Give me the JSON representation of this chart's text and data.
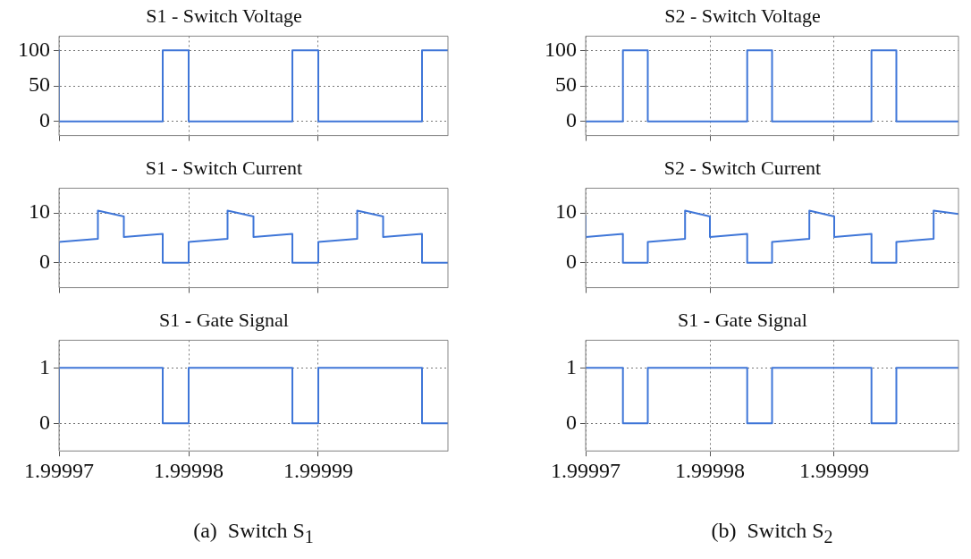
{
  "chart_data": [
    {
      "type": "line",
      "title": "S1 - Switch Voltage",
      "xlim": [
        1.99997,
        2.0
      ],
      "xticks": [
        1.99997,
        1.99998,
        1.99999
      ],
      "ylim": [
        -20,
        120
      ],
      "yticks": [
        0,
        50,
        100
      ],
      "grid": true,
      "marker": "none",
      "tick_labels": "y",
      "series": [
        {
          "color": "#3f76d8",
          "x": [
            1.99997,
            1.99997,
            1.999978,
            1.999978,
            1.99998,
            1.99998,
            1.999988,
            1.999988,
            1.99999,
            1.99999,
            1.999998,
            1.999998,
            2.0
          ],
          "values": [
            100,
            0,
            0,
            100,
            100,
            0,
            0,
            100,
            100,
            0,
            0,
            100,
            100
          ]
        }
      ]
    },
    {
      "type": "line",
      "title": "S2 - Switch Voltage",
      "xlim": [
        1.99997,
        2.0
      ],
      "xticks": [
        1.99997,
        1.99998,
        1.99999
      ],
      "ylim": [
        -20,
        120
      ],
      "yticks": [
        0,
        50,
        100
      ],
      "grid": true,
      "marker": "none",
      "tick_labels": "y",
      "series": [
        {
          "color": "#3f76d8",
          "x": [
            1.99997,
            1.999973,
            1.999973,
            1.999975,
            1.999975,
            1.999983,
            1.999983,
            1.999985,
            1.999985,
            1.999993,
            1.999993,
            1.999995,
            1.999995,
            2.0
          ],
          "values": [
            0,
            0,
            100,
            100,
            0,
            0,
            100,
            100,
            0,
            0,
            100,
            100,
            0,
            0
          ]
        }
      ]
    },
    {
      "type": "line",
      "title": "S1 - Switch Current",
      "xlim": [
        1.99997,
        2.0
      ],
      "xticks": [
        1.99997,
        1.99998,
        1.99999
      ],
      "ylim": [
        -5,
        15
      ],
      "yticks": [
        0,
        10
      ],
      "grid": true,
      "marker": "none",
      "tick_labels": "y",
      "series": [
        {
          "color": "#3f76d8",
          "x": [
            1.99997,
            1.99997,
            1.999973,
            1.999973,
            1.999975,
            1.999975,
            1.999978,
            1.999978,
            1.99998,
            1.99998,
            1.999983,
            1.999983,
            1.999985,
            1.999985,
            1.999988,
            1.999988,
            1.99999,
            1.99999,
            1.999993,
            1.999993,
            1.999995,
            1.999995,
            1.999998,
            1.999998,
            2.0
          ],
          "values": [
            0,
            4.2,
            4.8,
            10.5,
            9.3,
            5.2,
            5.8,
            0,
            0,
            4.2,
            4.8,
            10.5,
            9.3,
            5.2,
            5.8,
            0,
            0,
            4.2,
            4.8,
            10.5,
            9.3,
            5.2,
            5.8,
            0,
            0
          ]
        }
      ]
    },
    {
      "type": "line",
      "title": "S2 - Switch Current",
      "xlim": [
        1.99997,
        2.0
      ],
      "xticks": [
        1.99997,
        1.99998,
        1.99999
      ],
      "ylim": [
        -5,
        15
      ],
      "yticks": [
        0,
        10
      ],
      "grid": true,
      "marker": "none",
      "tick_labels": "y",
      "series": [
        {
          "color": "#3f76d8",
          "x": [
            1.99997,
            1.99997,
            1.999973,
            1.999973,
            1.999975,
            1.999975,
            1.999978,
            1.999978,
            1.99998,
            1.99998,
            1.999983,
            1.999983,
            1.999985,
            1.999985,
            1.999988,
            1.999988,
            1.99999,
            1.99999,
            1.999993,
            1.999993,
            1.999995,
            1.999995,
            1.999998,
            1.999998,
            2.0
          ],
          "values": [
            9.3,
            5.2,
            5.8,
            0,
            0,
            4.2,
            4.8,
            10.5,
            9.3,
            5.2,
            5.8,
            0,
            0,
            4.2,
            4.8,
            10.5,
            9.3,
            5.2,
            5.8,
            0,
            0,
            4.2,
            4.8,
            10.5,
            9.8
          ]
        }
      ]
    },
    {
      "type": "line",
      "title": "S1 - Gate Signal",
      "xlim": [
        1.99997,
        2.0
      ],
      "xticks": [
        1.99997,
        1.99998,
        1.99999
      ],
      "ylim": [
        -0.5,
        1.5
      ],
      "yticks": [
        0,
        1
      ],
      "grid": true,
      "marker": "none",
      "annotations": [
        "(a)  Switch S$_{1}$"
      ],
      "series": [
        {
          "color": "#3f76d8",
          "x": [
            1.99997,
            1.99997,
            1.999978,
            1.999978,
            1.99998,
            1.99998,
            1.999988,
            1.999988,
            1.99999,
            1.99999,
            1.999998,
            1.999998,
            2.0
          ],
          "values": [
            0,
            1,
            1,
            0,
            0,
            1,
            1,
            0,
            0,
            1,
            1,
            0,
            0
          ]
        }
      ]
    },
    {
      "type": "line",
      "title": "S1 - Gate Signal",
      "xlim": [
        1.99997,
        2.0
      ],
      "xticks": [
        1.99997,
        1.99998,
        1.99999
      ],
      "ylim": [
        -0.5,
        1.5
      ],
      "yticks": [
        0,
        1
      ],
      "grid": true,
      "marker": "none",
      "annotations": [
        "(b)  Switch S$_{2}$"
      ],
      "series": [
        {
          "color": "#3f76d8",
          "x": [
            1.99997,
            1.999973,
            1.999973,
            1.999975,
            1.999975,
            1.999983,
            1.999983,
            1.999985,
            1.999985,
            1.999993,
            1.999993,
            1.999995,
            1.999995,
            2.0
          ],
          "values": [
            1,
            1,
            0,
            0,
            1,
            1,
            0,
            0,
            1,
            1,
            0,
            0,
            1,
            1
          ]
        }
      ]
    }
  ]
}
